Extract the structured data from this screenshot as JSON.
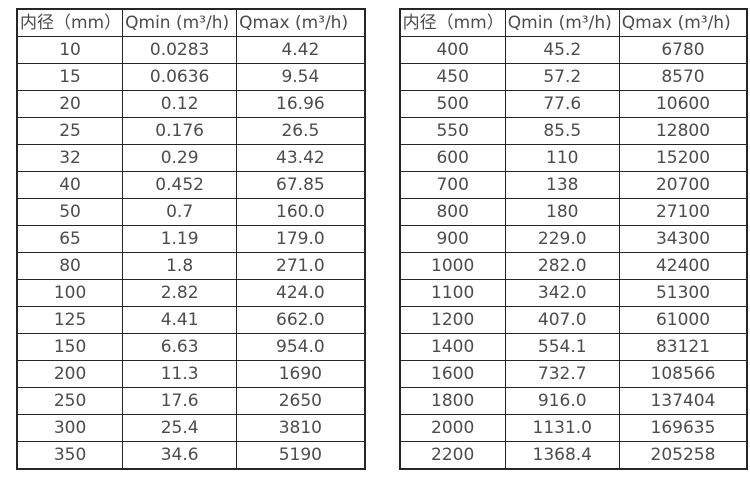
{
  "chart_data": [
    {
      "type": "table",
      "title": "",
      "columns": [
        "内径（mm）",
        "Qmin (m³/h)",
        "Qmax (m³/h)"
      ],
      "rows": [
        [
          "10",
          "0.0283",
          "4.42"
        ],
        [
          "15",
          "0.0636",
          "9.54"
        ],
        [
          "20",
          "0.12",
          "16.96"
        ],
        [
          "25",
          "0.176",
          "26.5"
        ],
        [
          "32",
          "0.29",
          "43.42"
        ],
        [
          "40",
          "0.452",
          "67.85"
        ],
        [
          "50",
          "0.7",
          "160.0"
        ],
        [
          "65",
          "1.19",
          "179.0"
        ],
        [
          "80",
          "1.8",
          "271.0"
        ],
        [
          "100",
          "2.82",
          "424.0"
        ],
        [
          "125",
          "4.41",
          "662.0"
        ],
        [
          "150",
          "6.63",
          "954.0"
        ],
        [
          "200",
          "11.3",
          "1690"
        ],
        [
          "250",
          "17.6",
          "2650"
        ],
        [
          "300",
          "25.4",
          "3810"
        ],
        [
          "350",
          "34.6",
          "5190"
        ]
      ]
    },
    {
      "type": "table",
      "title": "",
      "columns": [
        "内径（mm）",
        "Qmin (m³/h)",
        "Qmax (m³/h)"
      ],
      "rows": [
        [
          "400",
          "45.2",
          "6780"
        ],
        [
          "450",
          "57.2",
          "8570"
        ],
        [
          "500",
          "77.6",
          "10600"
        ],
        [
          "550",
          "85.5",
          "12800"
        ],
        [
          "600",
          "110",
          "15200"
        ],
        [
          "700",
          "138",
          "20700"
        ],
        [
          "800",
          "180",
          "27100"
        ],
        [
          "900",
          "229.0",
          "34300"
        ],
        [
          "1000",
          "282.0",
          "42400"
        ],
        [
          "1100",
          "342.0",
          "51300"
        ],
        [
          "1200",
          "407.0",
          "61000"
        ],
        [
          "1400",
          "554.1",
          "83121"
        ],
        [
          "1600",
          "732.7",
          "108566"
        ],
        [
          "1800",
          "916.0",
          "137404"
        ],
        [
          "2000",
          "1131.0",
          "169635"
        ],
        [
          "2200",
          "1368.4",
          "205258"
        ]
      ]
    }
  ],
  "colors": {
    "border": "#262626",
    "text": "#4c4c4c",
    "background": "#ffffff"
  }
}
